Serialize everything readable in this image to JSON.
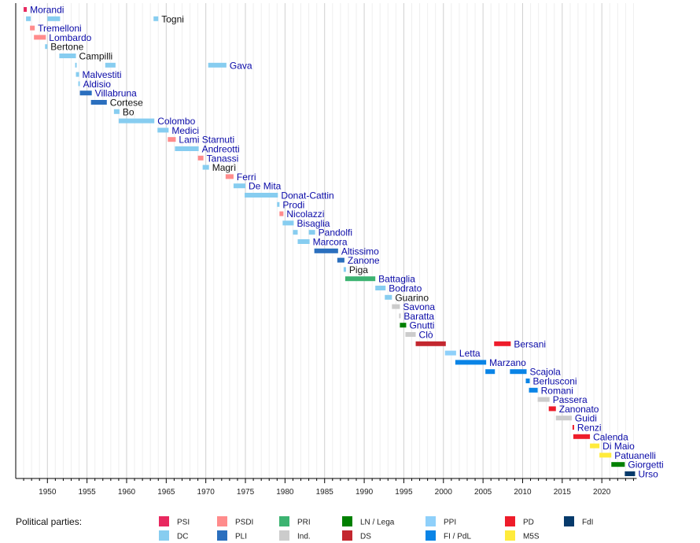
{
  "chart_data": {
    "type": "timeline",
    "xlim": [
      1946,
      2024.4
    ],
    "x_ticks": [
      1950,
      1955,
      1960,
      1965,
      1970,
      1975,
      1980,
      1985,
      1990,
      1995,
      2000,
      2005,
      2010,
      2015,
      2020
    ],
    "grid": true,
    "legend_title": "Political parties:",
    "legend_placement": "bottom",
    "parties": [
      {
        "key": "PSI",
        "label": "PSI",
        "color": "#e8285f"
      },
      {
        "key": "PSDI",
        "label": "PSDI",
        "color": "#ff8c8c"
      },
      {
        "key": "PRI",
        "label": "PRI",
        "color": "#3cb371"
      },
      {
        "key": "LN",
        "label": "LN / Lega",
        "color": "#008000"
      },
      {
        "key": "PPI",
        "label": "PPI",
        "color": "#8fd0fa"
      },
      {
        "key": "PD",
        "label": "PD",
        "color": "#ee1c2a"
      },
      {
        "key": "FdI",
        "label": "FdI",
        "color": "#063a6b"
      },
      {
        "key": "DC",
        "label": "DC",
        "color": "#87cdf0"
      },
      {
        "key": "PLI",
        "label": "PLI",
        "color": "#2b6fbe"
      },
      {
        "key": "Ind",
        "label": "Ind.",
        "color": "#cccccc"
      },
      {
        "key": "DS",
        "label": "DS",
        "color": "#c3272f"
      },
      {
        "key": "FI",
        "label": "FI / PdL",
        "color": "#0a84e6"
      },
      {
        "key": "M5S",
        "label": "M5S",
        "color": "#ffeb3b"
      }
    ],
    "rows": [
      {
        "name": "Morandi",
        "link": true,
        "bars": [
          [
            1947.0,
            1947.4,
            "PSI"
          ]
        ]
      },
      {
        "name": "Togni",
        "link": false,
        "bars": [
          [
            1947.3,
            1947.9,
            "DC"
          ],
          [
            1950.0,
            1951.6,
            "DC"
          ],
          [
            1963.4,
            1964.0,
            "DC"
          ]
        ]
      },
      {
        "name": "Tremelloni",
        "link": true,
        "bars": [
          [
            1947.8,
            1948.4,
            "PSDI"
          ]
        ]
      },
      {
        "name": "Lombardo",
        "link": true,
        "bars": [
          [
            1948.3,
            1949.8,
            "PSDI"
          ]
        ]
      },
      {
        "name": "Bertone",
        "link": false,
        "bars": [
          [
            1949.7,
            1950.0,
            "DC"
          ]
        ]
      },
      {
        "name": "Campilli",
        "link": false,
        "bars": [
          [
            1951.5,
            1953.6,
            "DC"
          ]
        ]
      },
      {
        "name": "Gava",
        "link": true,
        "bars": [
          [
            1953.5,
            1953.6,
            "DC"
          ],
          [
            1957.3,
            1958.6,
            "DC"
          ],
          [
            1970.3,
            1972.6,
            "DC"
          ]
        ]
      },
      {
        "name": "Malvestiti",
        "link": true,
        "bars": [
          [
            1953.6,
            1954.0,
            "DC"
          ]
        ]
      },
      {
        "name": "Aldisio",
        "link": true,
        "bars": [
          [
            1953.9,
            1954.1,
            "DC"
          ]
        ]
      },
      {
        "name": "Villabruna",
        "link": true,
        "bars": [
          [
            1954.1,
            1955.6,
            "PLI"
          ]
        ]
      },
      {
        "name": "Cortese",
        "link": false,
        "bars": [
          [
            1955.5,
            1957.5,
            "PLI"
          ]
        ]
      },
      {
        "name": "Bo",
        "link": false,
        "bars": [
          [
            1958.4,
            1959.1,
            "DC"
          ]
        ]
      },
      {
        "name": "Colombo",
        "link": true,
        "bars": [
          [
            1959.0,
            1963.5,
            "DC"
          ]
        ]
      },
      {
        "name": "Medici",
        "link": true,
        "bars": [
          [
            1963.9,
            1965.3,
            "DC"
          ]
        ]
      },
      {
        "name": "Lami Starnuti",
        "link": true,
        "bars": [
          [
            1965.2,
            1966.2,
            "PSDI"
          ]
        ]
      },
      {
        "name": "Andreotti",
        "link": true,
        "bars": [
          [
            1966.1,
            1969.1,
            "DC"
          ]
        ]
      },
      {
        "name": "Tanassi",
        "link": true,
        "bars": [
          [
            1969.0,
            1969.7,
            "PSDI"
          ]
        ]
      },
      {
        "name": "Magrì",
        "link": false,
        "bars": [
          [
            1969.6,
            1970.4,
            "DC"
          ]
        ]
      },
      {
        "name": "Ferri",
        "link": true,
        "bars": [
          [
            1972.5,
            1973.5,
            "PSDI"
          ]
        ]
      },
      {
        "name": "De Mita",
        "link": true,
        "bars": [
          [
            1973.5,
            1975.0,
            "DC"
          ]
        ]
      },
      {
        "name": "Donat-Cattin",
        "link": true,
        "bars": [
          [
            1974.9,
            1979.1,
            "DC"
          ]
        ]
      },
      {
        "name": "Prodi",
        "link": true,
        "bars": [
          [
            1979.0,
            1979.3,
            "DC"
          ]
        ]
      },
      {
        "name": "Nicolazzi",
        "link": true,
        "bars": [
          [
            1979.3,
            1979.8,
            "PSDI"
          ]
        ]
      },
      {
        "name": "Bisaglia",
        "link": true,
        "bars": [
          [
            1979.7,
            1981.1,
            "DC"
          ]
        ]
      },
      {
        "name": "Pandolfi",
        "link": true,
        "bars": [
          [
            1981.0,
            1981.6,
            "DC"
          ],
          [
            1983.0,
            1983.8,
            "DC"
          ]
        ]
      },
      {
        "name": "Marcora",
        "link": true,
        "bars": [
          [
            1981.6,
            1983.1,
            "DC"
          ]
        ]
      },
      {
        "name": "Altissimo",
        "link": true,
        "bars": [
          [
            1983.7,
            1986.7,
            "PLI"
          ]
        ]
      },
      {
        "name": "Zanone",
        "link": true,
        "bars": [
          [
            1986.6,
            1987.5,
            "PLI"
          ]
        ]
      },
      {
        "name": "Piga",
        "link": false,
        "bars": [
          [
            1987.4,
            1987.7,
            "DC"
          ]
        ]
      },
      {
        "name": "Battaglia",
        "link": true,
        "bars": [
          [
            1987.6,
            1991.4,
            "PRI"
          ]
        ]
      },
      {
        "name": "Bodrato",
        "link": true,
        "bars": [
          [
            1991.4,
            1992.7,
            "DC"
          ]
        ]
      },
      {
        "name": "Guarino",
        "link": false,
        "bars": [
          [
            1992.6,
            1993.5,
            "DC"
          ]
        ]
      },
      {
        "name": "Savona",
        "link": true,
        "bars": [
          [
            1993.5,
            1994.5,
            "Ind"
          ]
        ]
      },
      {
        "name": "Baratta",
        "link": true,
        "bars": [
          [
            1994.4,
            1994.6,
            "Ind"
          ]
        ]
      },
      {
        "name": "Gnutti",
        "link": true,
        "bars": [
          [
            1994.5,
            1995.3,
            "LN"
          ]
        ]
      },
      {
        "name": "Clò",
        "link": true,
        "bars": [
          [
            1995.2,
            1996.5,
            "Ind"
          ]
        ]
      },
      {
        "name": "Bersani",
        "link": true,
        "bars": [
          [
            1996.5,
            2000.3,
            "DS"
          ],
          [
            2006.4,
            2008.5,
            "PD"
          ]
        ]
      },
      {
        "name": "Letta",
        "link": true,
        "bars": [
          [
            2000.2,
            2001.6,
            "PPI"
          ]
        ]
      },
      {
        "name": "Marzano",
        "link": true,
        "bars": [
          [
            2001.5,
            2005.4,
            "FI"
          ]
        ]
      },
      {
        "name": "Scajola",
        "link": true,
        "bars": [
          [
            2005.3,
            2006.5,
            "FI"
          ],
          [
            2008.4,
            2010.5,
            "FI"
          ]
        ]
      },
      {
        "name": "Berlusconi",
        "link": true,
        "bars": [
          [
            2010.4,
            2010.9,
            "FI"
          ]
        ]
      },
      {
        "name": "Romani",
        "link": true,
        "bars": [
          [
            2010.8,
            2011.9,
            "FI"
          ]
        ]
      },
      {
        "name": "Passera",
        "link": true,
        "bars": [
          [
            2011.9,
            2013.4,
            "Ind"
          ]
        ]
      },
      {
        "name": "Zanonato",
        "link": true,
        "bars": [
          [
            2013.3,
            2014.2,
            "PD"
          ]
        ]
      },
      {
        "name": "Guidi",
        "link": true,
        "bars": [
          [
            2014.2,
            2016.2,
            "Ind"
          ]
        ]
      },
      {
        "name": "Renzi",
        "link": true,
        "bars": [
          [
            2016.3,
            2016.5,
            "PD"
          ]
        ]
      },
      {
        "name": "Calenda",
        "link": true,
        "bars": [
          [
            2016.4,
            2018.5,
            "PD"
          ]
        ]
      },
      {
        "name": "Di Maio",
        "link": true,
        "bars": [
          [
            2018.5,
            2019.7,
            "M5S"
          ]
        ]
      },
      {
        "name": "Patuanelli",
        "link": true,
        "bars": [
          [
            2019.7,
            2021.2,
            "M5S"
          ]
        ]
      },
      {
        "name": "Giorgetti",
        "link": true,
        "bars": [
          [
            2021.2,
            2022.9,
            "LN"
          ]
        ]
      },
      {
        "name": "Urso",
        "link": true,
        "bars": [
          [
            2022.9,
            2024.2,
            "FdI"
          ]
        ]
      }
    ]
  }
}
